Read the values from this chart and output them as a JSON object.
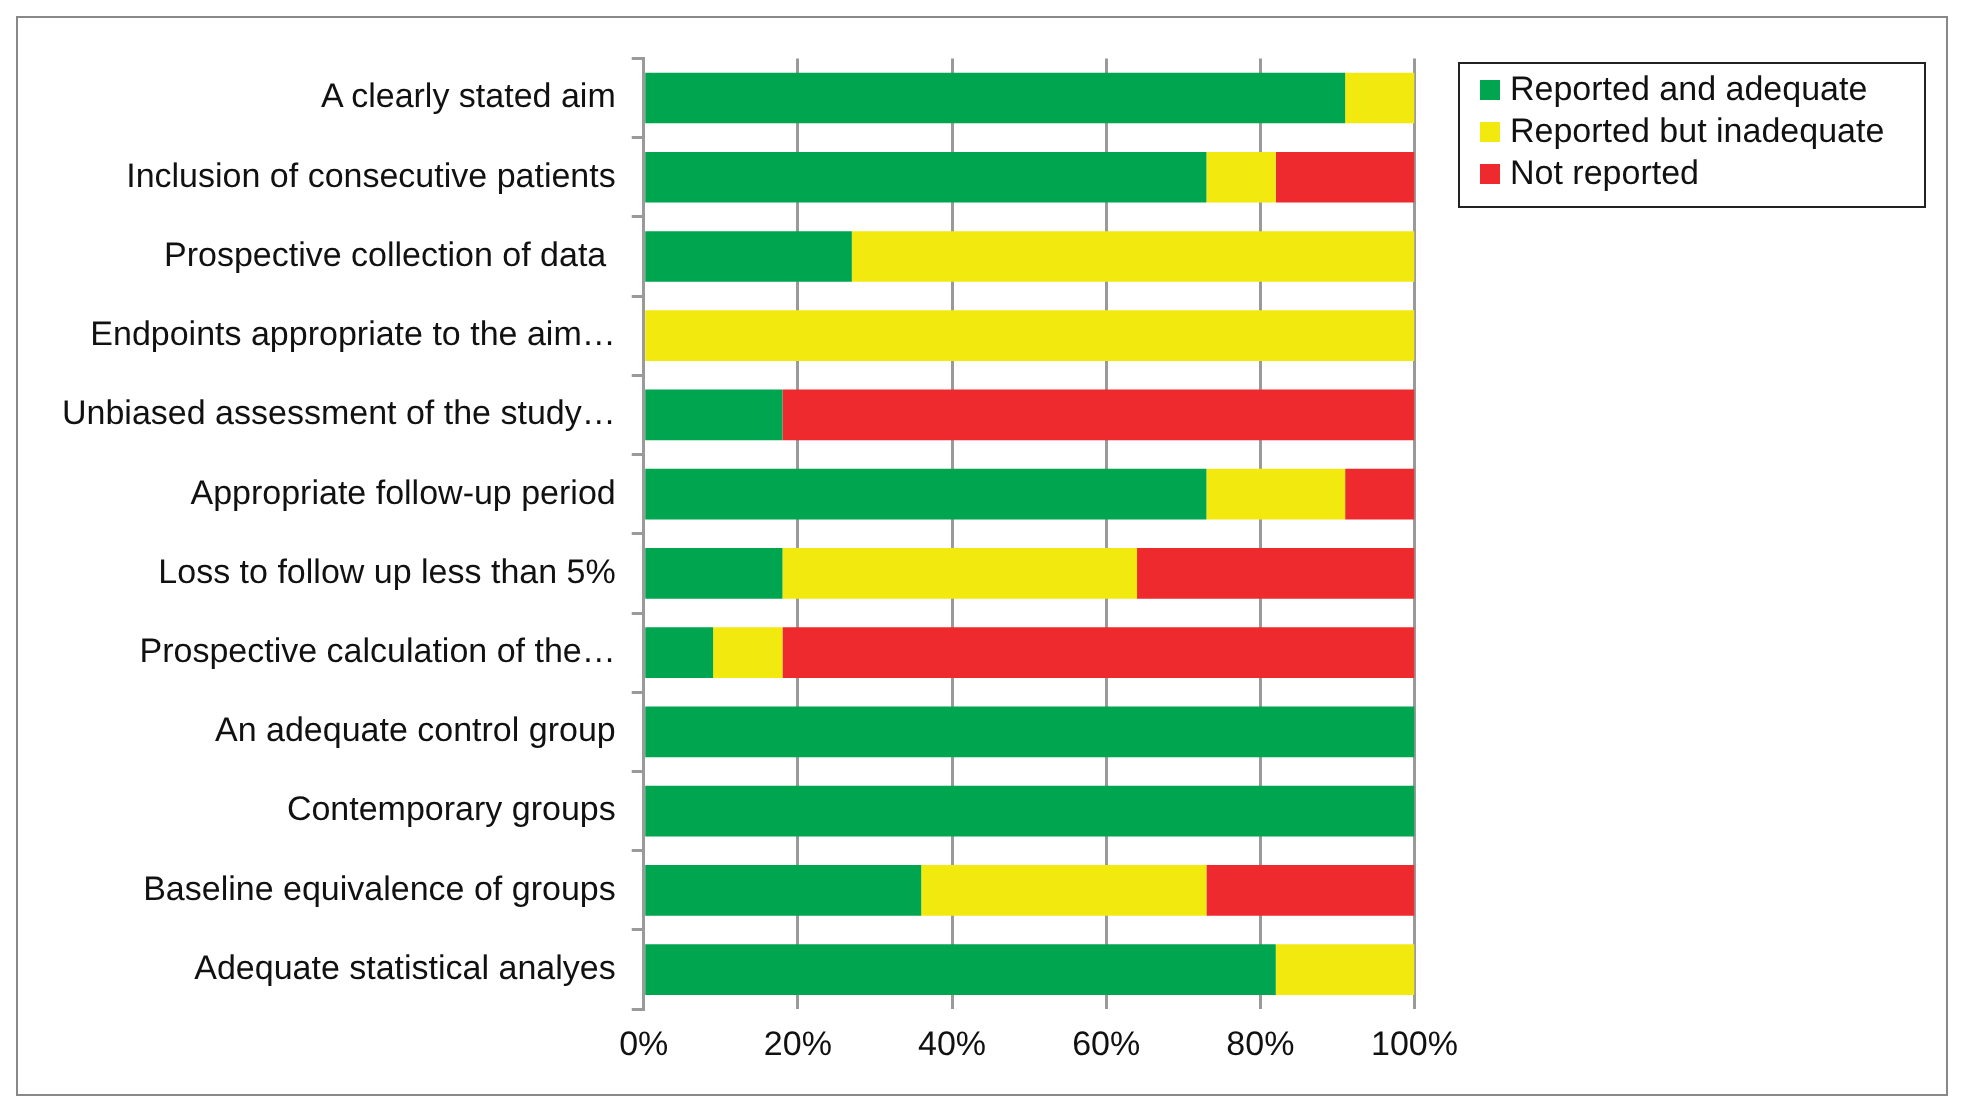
{
  "chart_data": {
    "type": "bar",
    "orientation": "horizontal",
    "stacked": true,
    "categories": [
      "A clearly stated aim",
      "Inclusion of consecutive patients",
      "Prospective collection of data ",
      "Endpoints appropriate to the aim…",
      "Unbiased assessment of the study…",
      "Appropriate follow-up period",
      "Loss to follow up less than 5%",
      "Prospective calculation of the…",
      "An adequate control group",
      "Contemporary groups",
      "Baseline equivalence of groups",
      "Adequate statistical analyes"
    ],
    "series": [
      {
        "name": "Reported and adequate",
        "color": "#00a550",
        "values": [
          91,
          73,
          27,
          0,
          18,
          73,
          18,
          9,
          100,
          100,
          36,
          82
        ]
      },
      {
        "name": "Reported but inadequate",
        "color": "#f2e90f",
        "values": [
          9,
          9,
          73,
          100,
          0,
          18,
          46,
          9,
          0,
          0,
          37,
          18
        ]
      },
      {
        "name": "Not reported",
        "color": "#ee2a2f",
        "values": [
          0,
          18,
          0,
          0,
          82,
          9,
          36,
          82,
          0,
          0,
          27,
          0
        ]
      }
    ],
    "xlim": [
      0,
      100
    ],
    "xticks": [
      {
        "value": 0,
        "label": "0%"
      },
      {
        "value": 20,
        "label": "20%"
      },
      {
        "value": 40,
        "label": "40%"
      },
      {
        "value": 60,
        "label": "60%"
      },
      {
        "value": 80,
        "label": "80%"
      },
      {
        "value": 100,
        "label": "100%"
      }
    ],
    "grid": "x",
    "legend": "right"
  }
}
